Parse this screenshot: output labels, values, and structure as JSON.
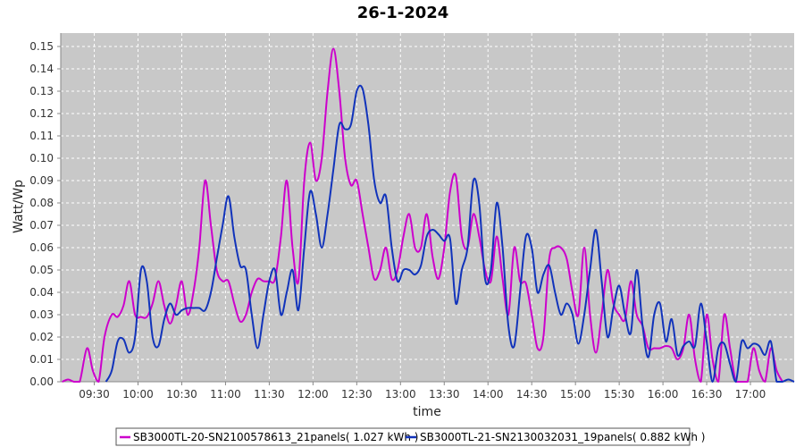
{
  "chart_data": {
    "type": "line",
    "title": "26-1-2024",
    "xlabel": "time",
    "ylabel": "Watt/Wp",
    "ylim": [
      0,
      0.156
    ],
    "xlim": [
      "09:07",
      "17:30"
    ],
    "y_ticks": [
      "0.00",
      "0.01",
      "0.02",
      "0.03",
      "0.04",
      "0.05",
      "0.06",
      "0.07",
      "0.08",
      "0.09",
      "0.10",
      "0.11",
      "0.12",
      "0.13",
      "0.14",
      "0.15"
    ],
    "x_ticks": [
      "09:30",
      "10:00",
      "10:30",
      "11:00",
      "11:30",
      "12:00",
      "12:30",
      "13:00",
      "13:30",
      "14:00",
      "14:30",
      "15:00",
      "15:30",
      "16:00",
      "16:30",
      "17:00"
    ],
    "plot_background": "#c8c8c8",
    "grid": true,
    "legend_position": "bottom",
    "series": [
      {
        "name": "SB3000TL-20-SN2100578613_21panels( 1.027 kWh )",
        "color": "#cc00cc",
        "points": [
          [
            "09:08",
            0.0
          ],
          [
            "09:12",
            0.001
          ],
          [
            "09:16",
            0.0
          ],
          [
            "09:20",
            0.0
          ],
          [
            "09:25",
            0.015
          ],
          [
            "09:29",
            0.005
          ],
          [
            "09:33",
            0.0
          ],
          [
            "09:37",
            0.02
          ],
          [
            "09:42",
            0.03
          ],
          [
            "09:46",
            0.029
          ],
          [
            "09:50",
            0.034
          ],
          [
            "09:54",
            0.045
          ],
          [
            "09:58",
            0.03
          ],
          [
            "10:02",
            0.029
          ],
          [
            "10:06",
            0.029
          ],
          [
            "10:10",
            0.035
          ],
          [
            "10:14",
            0.045
          ],
          [
            "10:18",
            0.034
          ],
          [
            "10:22",
            0.026
          ],
          [
            "10:26",
            0.034
          ],
          [
            "10:30",
            0.045
          ],
          [
            "10:34",
            0.03
          ],
          [
            "10:38",
            0.04
          ],
          [
            "10:42",
            0.06
          ],
          [
            "10:46",
            0.09
          ],
          [
            "10:50",
            0.07
          ],
          [
            "10:54",
            0.05
          ],
          [
            "10:58",
            0.045
          ],
          [
            "11:02",
            0.045
          ],
          [
            "11:06",
            0.035
          ],
          [
            "11:10",
            0.027
          ],
          [
            "11:14",
            0.03
          ],
          [
            "11:18",
            0.04
          ],
          [
            "11:22",
            0.046
          ],
          [
            "11:26",
            0.045
          ],
          [
            "11:30",
            0.045
          ],
          [
            "11:34",
            0.046
          ],
          [
            "11:38",
            0.065
          ],
          [
            "11:42",
            0.09
          ],
          [
            "11:46",
            0.06
          ],
          [
            "11:50",
            0.045
          ],
          [
            "11:54",
            0.09
          ],
          [
            "11:58",
            0.107
          ],
          [
            "12:02",
            0.09
          ],
          [
            "12:06",
            0.1
          ],
          [
            "12:10",
            0.13
          ],
          [
            "12:14",
            0.149
          ],
          [
            "12:18",
            0.13
          ],
          [
            "12:22",
            0.1
          ],
          [
            "12:26",
            0.088
          ],
          [
            "12:30",
            0.09
          ],
          [
            "12:34",
            0.075
          ],
          [
            "12:38",
            0.06
          ],
          [
            "12:42",
            0.046
          ],
          [
            "12:46",
            0.05
          ],
          [
            "12:50",
            0.06
          ],
          [
            "12:54",
            0.046
          ],
          [
            "12:58",
            0.05
          ],
          [
            "13:02",
            0.065
          ],
          [
            "13:06",
            0.075
          ],
          [
            "13:10",
            0.06
          ],
          [
            "13:14",
            0.06
          ],
          [
            "13:18",
            0.075
          ],
          [
            "13:22",
            0.056
          ],
          [
            "13:26",
            0.046
          ],
          [
            "13:30",
            0.06
          ],
          [
            "13:34",
            0.085
          ],
          [
            "13:38",
            0.092
          ],
          [
            "13:42",
            0.065
          ],
          [
            "13:46",
            0.06
          ],
          [
            "13:50",
            0.075
          ],
          [
            "13:54",
            0.065
          ],
          [
            "13:58",
            0.05
          ],
          [
            "14:02",
            0.045
          ],
          [
            "14:06",
            0.065
          ],
          [
            "14:10",
            0.046
          ],
          [
            "14:14",
            0.03
          ],
          [
            "14:18",
            0.06
          ],
          [
            "14:22",
            0.045
          ],
          [
            "14:26",
            0.044
          ],
          [
            "14:30",
            0.03
          ],
          [
            "14:34",
            0.015
          ],
          [
            "14:38",
            0.02
          ],
          [
            "14:42",
            0.055
          ],
          [
            "14:46",
            0.06
          ],
          [
            "14:50",
            0.06
          ],
          [
            "14:54",
            0.055
          ],
          [
            "14:58",
            0.04
          ],
          [
            "15:02",
            0.03
          ],
          [
            "15:06",
            0.06
          ],
          [
            "15:10",
            0.03
          ],
          [
            "15:14",
            0.013
          ],
          [
            "15:18",
            0.03
          ],
          [
            "15:22",
            0.05
          ],
          [
            "15:26",
            0.035
          ],
          [
            "15:30",
            0.03
          ],
          [
            "15:34",
            0.028
          ],
          [
            "15:38",
            0.045
          ],
          [
            "15:42",
            0.03
          ],
          [
            "15:46",
            0.025
          ],
          [
            "15:50",
            0.015
          ],
          [
            "15:54",
            0.015
          ],
          [
            "15:58",
            0.015
          ],
          [
            "16:02",
            0.016
          ],
          [
            "16:06",
            0.015
          ],
          [
            "16:10",
            0.01
          ],
          [
            "16:14",
            0.015
          ],
          [
            "16:18",
            0.03
          ],
          [
            "16:22",
            0.01
          ],
          [
            "16:26",
            0.0
          ],
          [
            "16:30",
            0.03
          ],
          [
            "16:34",
            0.01
          ],
          [
            "16:38",
            0.0
          ],
          [
            "16:42",
            0.03
          ],
          [
            "16:46",
            0.015
          ],
          [
            "16:50",
            0.0
          ],
          [
            "16:54",
            0.0
          ],
          [
            "16:58",
            0.0
          ],
          [
            "17:02",
            0.015
          ],
          [
            "17:06",
            0.005
          ],
          [
            "17:10",
            0.0
          ],
          [
            "17:14",
            0.015
          ],
          [
            "17:18",
            0.005
          ],
          [
            "17:22",
            0.0
          ]
        ]
      },
      {
        "name": "SB3000TL-21-SN2130032031_19panels( 0.882 kWh )",
        "color": "#1133bb",
        "points": [
          [
            "09:38",
            0.0
          ],
          [
            "09:42",
            0.005
          ],
          [
            "09:46",
            0.018
          ],
          [
            "09:50",
            0.019
          ],
          [
            "09:54",
            0.013
          ],
          [
            "09:58",
            0.02
          ],
          [
            "10:02",
            0.05
          ],
          [
            "10:06",
            0.045
          ],
          [
            "10:10",
            0.02
          ],
          [
            "10:14",
            0.016
          ],
          [
            "10:18",
            0.028
          ],
          [
            "10:22",
            0.035
          ],
          [
            "10:26",
            0.03
          ],
          [
            "10:30",
            0.032
          ],
          [
            "10:34",
            0.033
          ],
          [
            "10:38",
            0.033
          ],
          [
            "10:42",
            0.033
          ],
          [
            "10:46",
            0.032
          ],
          [
            "10:50",
            0.04
          ],
          [
            "10:54",
            0.055
          ],
          [
            "10:58",
            0.07
          ],
          [
            "11:02",
            0.083
          ],
          [
            "11:06",
            0.065
          ],
          [
            "11:10",
            0.052
          ],
          [
            "11:14",
            0.05
          ],
          [
            "11:18",
            0.03
          ],
          [
            "11:22",
            0.015
          ],
          [
            "11:26",
            0.03
          ],
          [
            "11:30",
            0.045
          ],
          [
            "11:34",
            0.05
          ],
          [
            "11:38",
            0.03
          ],
          [
            "11:42",
            0.04
          ],
          [
            "11:46",
            0.05
          ],
          [
            "11:50",
            0.032
          ],
          [
            "11:54",
            0.06
          ],
          [
            "11:58",
            0.085
          ],
          [
            "12:02",
            0.075
          ],
          [
            "12:06",
            0.06
          ],
          [
            "12:10",
            0.075
          ],
          [
            "12:14",
            0.095
          ],
          [
            "12:18",
            0.115
          ],
          [
            "12:22",
            0.113
          ],
          [
            "12:26",
            0.115
          ],
          [
            "12:30",
            0.13
          ],
          [
            "12:34",
            0.131
          ],
          [
            "12:38",
            0.115
          ],
          [
            "12:42",
            0.09
          ],
          [
            "12:46",
            0.08
          ],
          [
            "12:50",
            0.083
          ],
          [
            "12:54",
            0.06
          ],
          [
            "12:58",
            0.045
          ],
          [
            "13:02",
            0.05
          ],
          [
            "13:06",
            0.05
          ],
          [
            "13:10",
            0.048
          ],
          [
            "13:14",
            0.052
          ],
          [
            "13:18",
            0.065
          ],
          [
            "13:22",
            0.068
          ],
          [
            "13:26",
            0.066
          ],
          [
            "13:30",
            0.063
          ],
          [
            "13:34",
            0.064
          ],
          [
            "13:38",
            0.035
          ],
          [
            "13:42",
            0.05
          ],
          [
            "13:46",
            0.06
          ],
          [
            "13:50",
            0.09
          ],
          [
            "13:54",
            0.08
          ],
          [
            "13:58",
            0.046
          ],
          [
            "14:02",
            0.05
          ],
          [
            "14:06",
            0.08
          ],
          [
            "14:10",
            0.06
          ],
          [
            "14:14",
            0.025
          ],
          [
            "14:18",
            0.016
          ],
          [
            "14:22",
            0.04
          ],
          [
            "14:26",
            0.065
          ],
          [
            "14:30",
            0.06
          ],
          [
            "14:34",
            0.04
          ],
          [
            "14:38",
            0.048
          ],
          [
            "14:42",
            0.052
          ],
          [
            "14:46",
            0.04
          ],
          [
            "14:50",
            0.03
          ],
          [
            "14:54",
            0.035
          ],
          [
            "14:58",
            0.03
          ],
          [
            "15:02",
            0.017
          ],
          [
            "15:06",
            0.03
          ],
          [
            "15:10",
            0.05
          ],
          [
            "15:14",
            0.068
          ],
          [
            "15:18",
            0.045
          ],
          [
            "15:22",
            0.02
          ],
          [
            "15:26",
            0.033
          ],
          [
            "15:30",
            0.043
          ],
          [
            "15:34",
            0.03
          ],
          [
            "15:38",
            0.022
          ],
          [
            "15:42",
            0.05
          ],
          [
            "15:46",
            0.025
          ],
          [
            "15:50",
            0.011
          ],
          [
            "15:54",
            0.03
          ],
          [
            "15:58",
            0.035
          ],
          [
            "16:02",
            0.018
          ],
          [
            "16:06",
            0.028
          ],
          [
            "16:10",
            0.012
          ],
          [
            "16:14",
            0.016
          ],
          [
            "16:18",
            0.018
          ],
          [
            "16:22",
            0.016
          ],
          [
            "16:26",
            0.035
          ],
          [
            "16:30",
            0.018
          ],
          [
            "16:34",
            0.0
          ],
          [
            "16:38",
            0.015
          ],
          [
            "16:42",
            0.017
          ],
          [
            "16:46",
            0.008
          ],
          [
            "16:50",
            0.0
          ],
          [
            "16:54",
            0.018
          ],
          [
            "16:58",
            0.015
          ],
          [
            "17:02",
            0.017
          ],
          [
            "17:06",
            0.016
          ],
          [
            "17:10",
            0.012
          ],
          [
            "17:14",
            0.018
          ],
          [
            "17:18",
            0.0
          ],
          [
            "17:22",
            0.0
          ],
          [
            "17:26",
            0.001
          ],
          [
            "17:30",
            0.0
          ]
        ]
      }
    ]
  }
}
